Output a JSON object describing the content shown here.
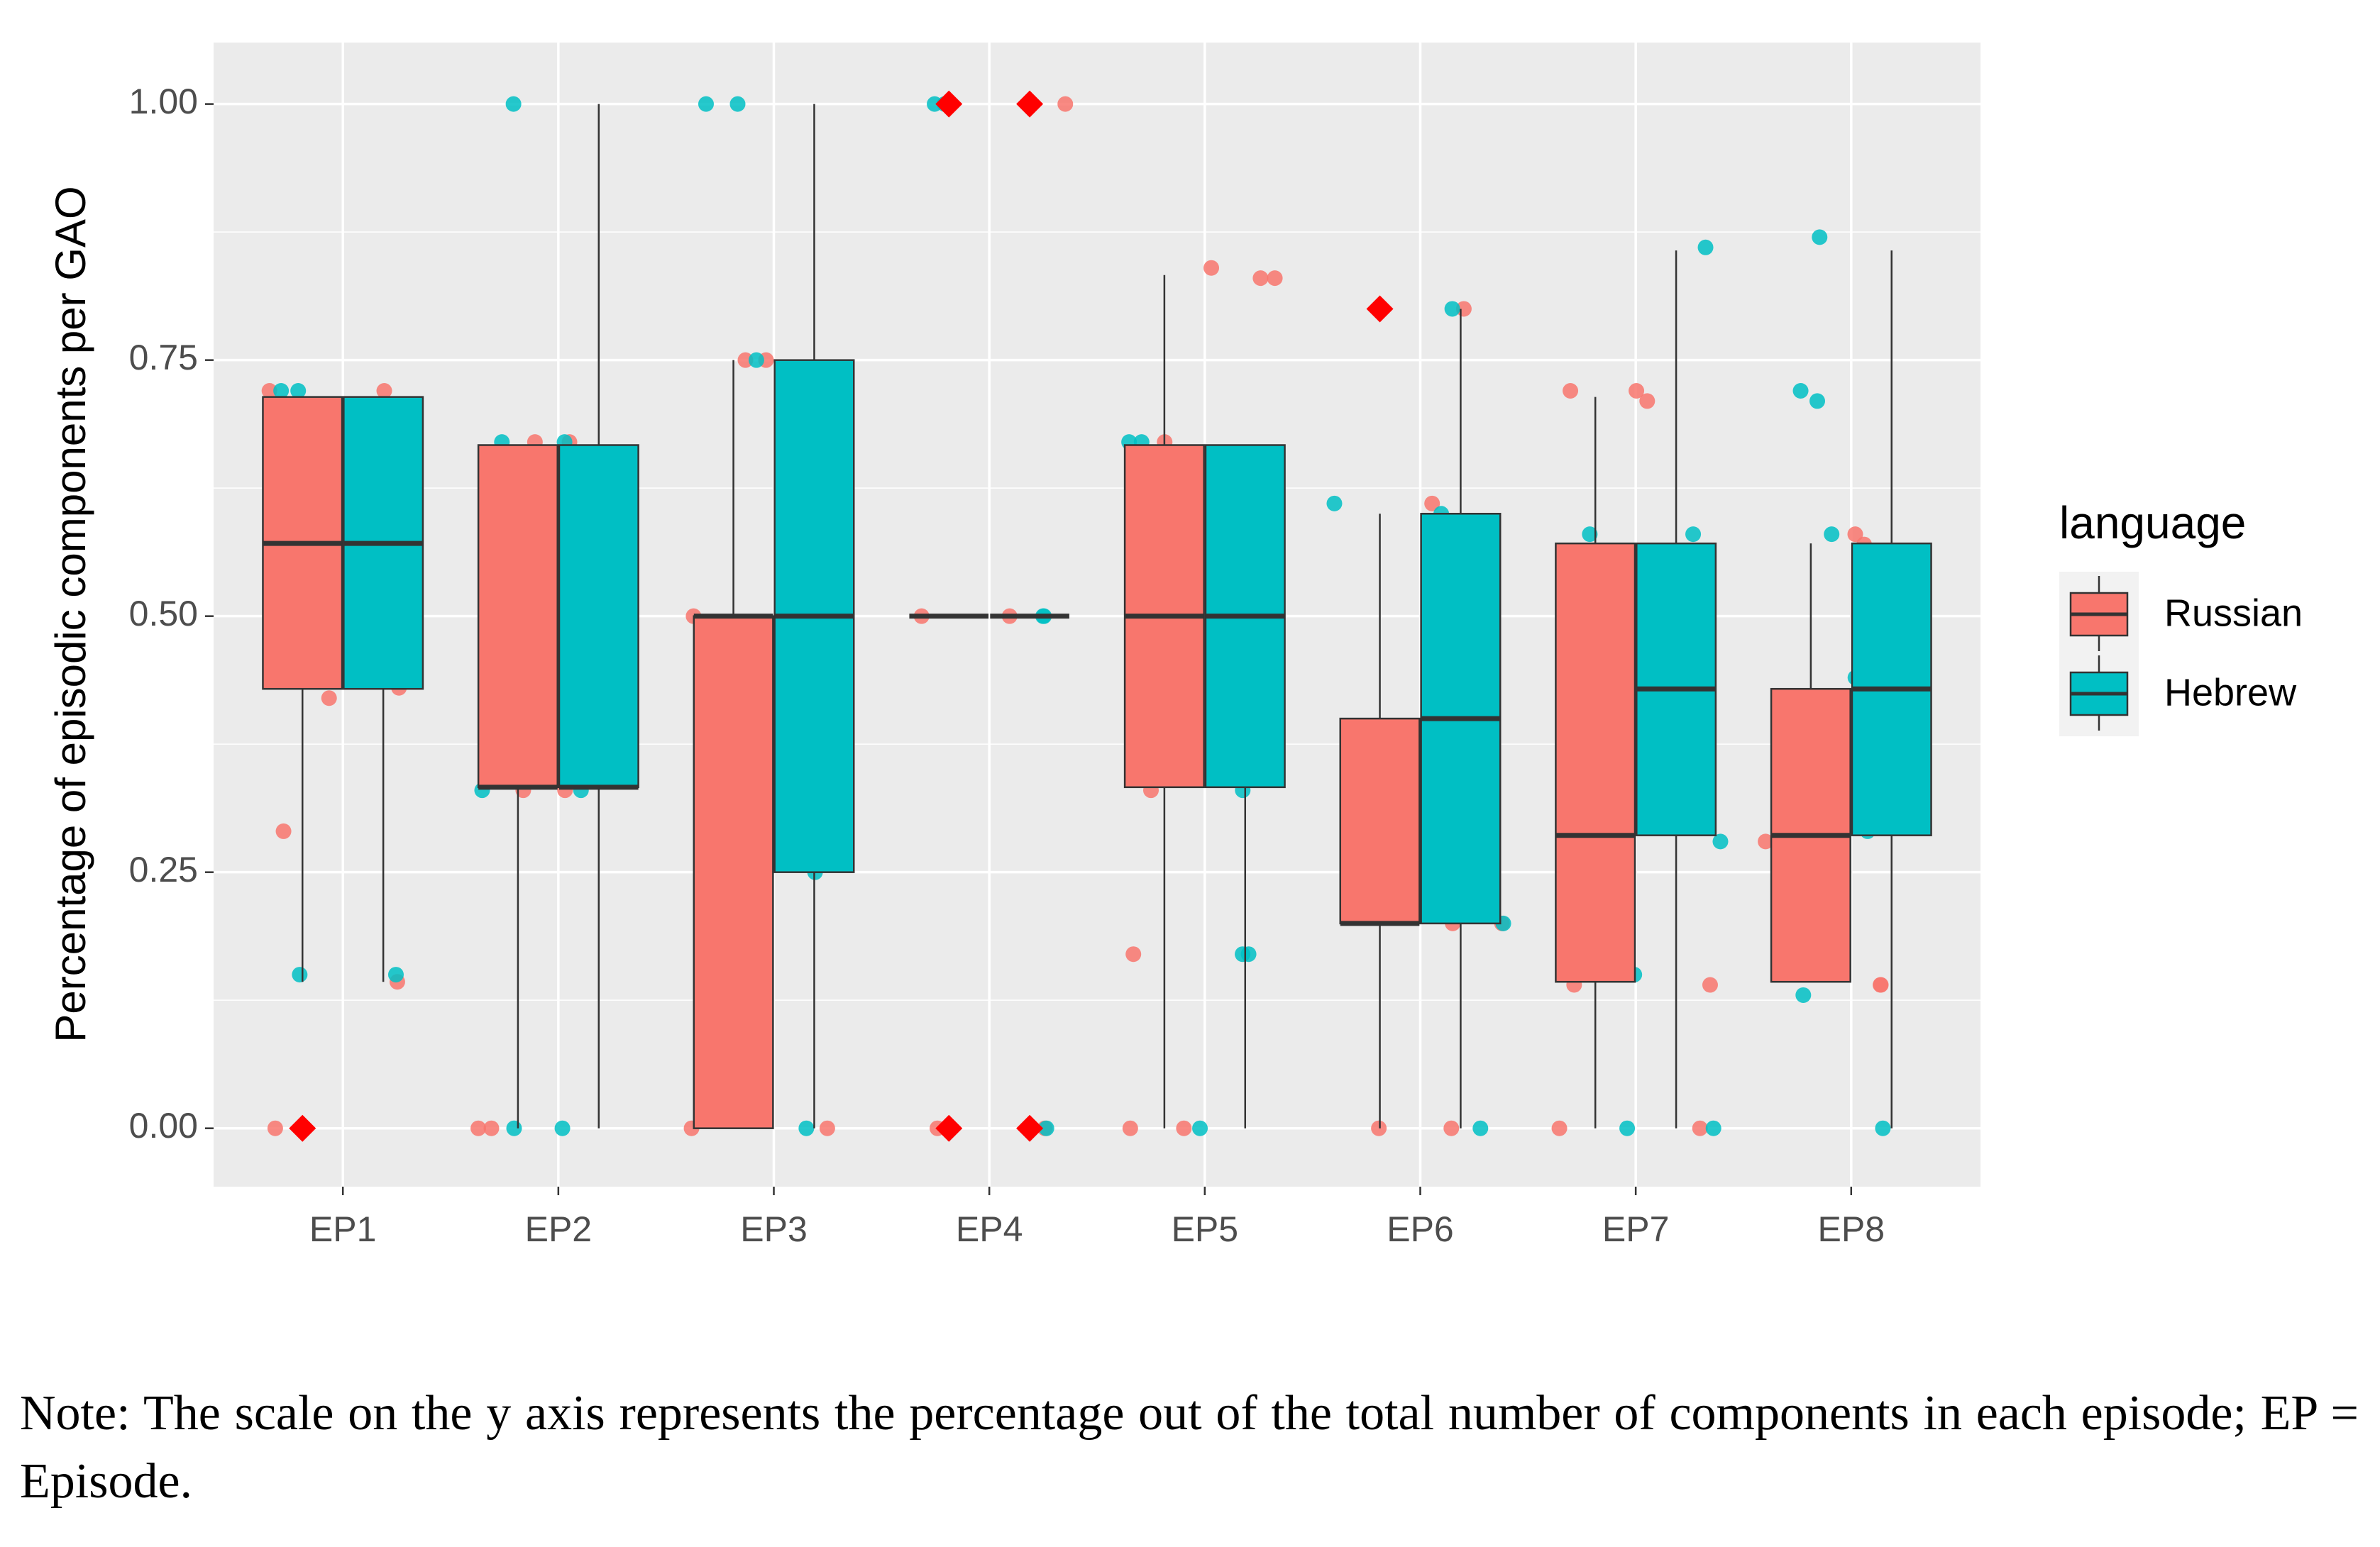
{
  "chart_data": {
    "type": "boxplot",
    "ylabel": "Percentage of episodic components per GAO",
    "categories": [
      "EP1",
      "EP2",
      "EP3",
      "EP4",
      "EP5",
      "EP6",
      "EP7",
      "EP8"
    ],
    "ylim": [
      -0.057,
      1.06
    ],
    "yticks": [
      {
        "value": 0,
        "label": "0.00"
      },
      {
        "value": 0.25,
        "label": "0.25"
      },
      {
        "value": 0.5,
        "label": "0.50"
      },
      {
        "value": 0.75,
        "label": "0.75"
      },
      {
        "value": 1,
        "label": "1.00"
      }
    ],
    "grid": true,
    "legend_title": "language",
    "outlier_color": "#ff0000",
    "series": [
      {
        "name": "Russian",
        "color": "#f8766d",
        "boxes": [
          {
            "min": 0.143,
            "q1": 0.429,
            "median": 0.571,
            "q3": 0.714,
            "max": 0.714,
            "outliers": [
              0
            ]
          },
          {
            "min": 0,
            "q1": 0.333,
            "median": 0.333,
            "q3": 0.667,
            "max": 0.667,
            "outliers": []
          },
          {
            "min": 0,
            "q1": 0,
            "median": 0.5,
            "q3": 0.5,
            "max": 0.75,
            "outliers": []
          },
          {
            "min": 0.5,
            "q1": 0.5,
            "median": 0.5,
            "q3": 0.5,
            "max": 0.5,
            "outliers": [
              0,
              1
            ]
          },
          {
            "min": 0,
            "q1": 0.333,
            "median": 0.5,
            "q3": 0.667,
            "max": 0.833,
            "outliers": []
          },
          {
            "min": 0,
            "q1": 0.2,
            "median": 0.2,
            "q3": 0.4,
            "max": 0.6,
            "outliers": [
              0.8
            ]
          },
          {
            "min": 0,
            "q1": 0.143,
            "median": 0.286,
            "q3": 0.571,
            "max": 0.714,
            "outliers": []
          },
          {
            "min": 0.143,
            "q1": 0.143,
            "median": 0.286,
            "q3": 0.429,
            "max": 0.571,
            "outliers": []
          }
        ],
        "points": [
          [
            0.72,
            0.72,
            0.42,
            0.43,
            0.29,
            0.143,
            0
          ],
          [
            0.67,
            0.67,
            0.33,
            0.33,
            0,
            0
          ],
          [
            0.75,
            0.75,
            0.5,
            0.5,
            0,
            0
          ],
          [
            1,
            1,
            0.5,
            0.5,
            0,
            0
          ],
          [
            0.83,
            0.84,
            0.83,
            0.67,
            0.33,
            0.17,
            0,
            0
          ],
          [
            0.8,
            0.61,
            0.2,
            0.2,
            0,
            0
          ],
          [
            0.72,
            0.71,
            0.72,
            0.29,
            0.14,
            0.14,
            0,
            0
          ],
          [
            0.58,
            0.57,
            0.44,
            0.28,
            0.14,
            0.14
          ]
        ]
      },
      {
        "name": "Hebrew",
        "color": "#00bfc4",
        "boxes": [
          {
            "min": 0.143,
            "q1": 0.429,
            "median": 0.571,
            "q3": 0.714,
            "max": 0.714,
            "outliers": []
          },
          {
            "min": 0,
            "q1": 0.333,
            "median": 0.333,
            "q3": 0.667,
            "max": 1,
            "outliers": []
          },
          {
            "min": 0,
            "q1": 0.25,
            "median": 0.5,
            "q3": 0.75,
            "max": 1,
            "outliers": []
          },
          {
            "min": 0.5,
            "q1": 0.5,
            "median": 0.5,
            "q3": 0.5,
            "max": 0.5,
            "outliers": [
              0,
              1
            ]
          },
          {
            "min": 0,
            "q1": 0.333,
            "median": 0.5,
            "q3": 0.667,
            "max": 0.667,
            "outliers": []
          },
          {
            "min": 0,
            "q1": 0.2,
            "median": 0.4,
            "q3": 0.6,
            "max": 0.8,
            "outliers": []
          },
          {
            "min": 0,
            "q1": 0.286,
            "median": 0.429,
            "q3": 0.571,
            "max": 0.857,
            "outliers": []
          },
          {
            "min": 0,
            "q1": 0.286,
            "median": 0.429,
            "q3": 0.571,
            "max": 0.857,
            "outliers": []
          }
        ],
        "points": [
          [
            0.72,
            0.72,
            0.15,
            0.15
          ],
          [
            1,
            0.67,
            0.67,
            0.33,
            0.33,
            0,
            0
          ],
          [
            1,
            1,
            0.75,
            0.5,
            0.25,
            0.25,
            0
          ],
          [
            1,
            1,
            0.5,
            0.5,
            0,
            0
          ],
          [
            0.67,
            0.67,
            0.33,
            0.17,
            0.17,
            0
          ],
          [
            0.8,
            0.61,
            0.6,
            0.4,
            0.4,
            0.2,
            0
          ],
          [
            0.86,
            0.58,
            0.58,
            0.28,
            0.15,
            0,
            0
          ],
          [
            0.87,
            0.71,
            0.72,
            0.58,
            0.44,
            0.29,
            0.13,
            0
          ]
        ]
      }
    ]
  },
  "note": "Note: The scale on the y axis represents the percentage out of the total number of components in each episode; EP = Episode."
}
